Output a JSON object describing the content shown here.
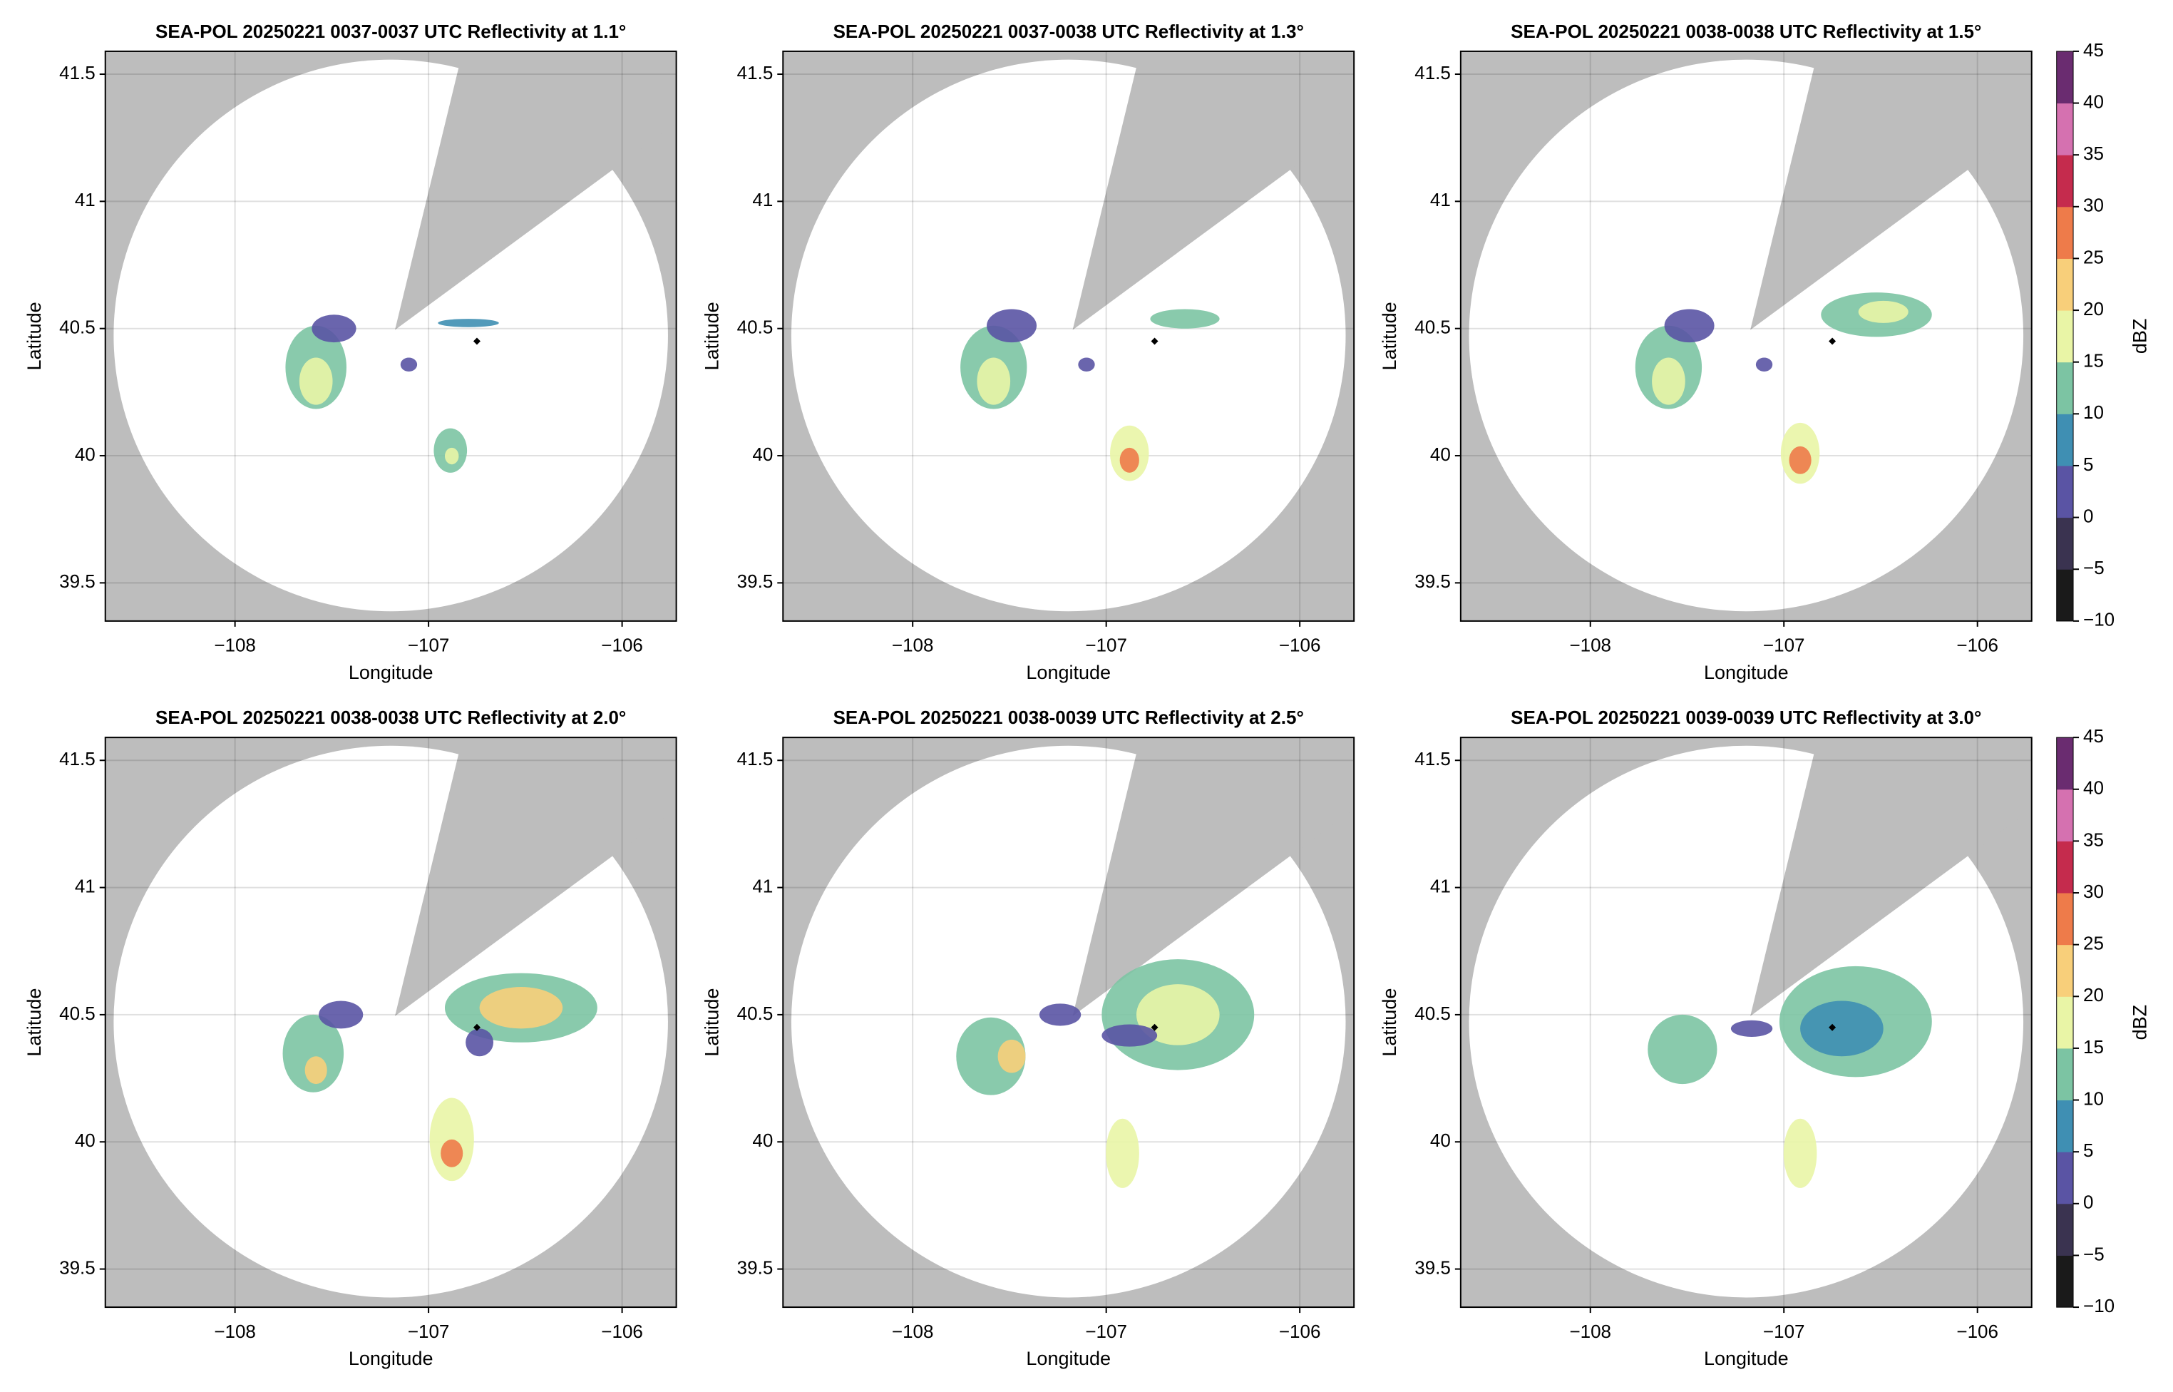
{
  "chart_data": [
    {
      "type": "map",
      "title": "SEA-POL 20250221 0037-0037 UTC Reflectivity at 1.1°",
      "xlabel": "Longitude",
      "ylabel": "Latitude",
      "xlim": [
        -108.67,
        -105.72
      ],
      "ylim": [
        39.35,
        41.59
      ],
      "xticks": [
        {
          "value": -108,
          "label": "−108"
        },
        {
          "value": -107,
          "label": "−107"
        },
        {
          "value": -106,
          "label": "−106"
        }
      ],
      "yticks": [
        39.5,
        40.0,
        40.5,
        41.0,
        41.5
      ],
      "grid": true,
      "site": {
        "x": -106.75,
        "y": 40.45
      }
    },
    {
      "type": "map",
      "title": "SEA-POL 20250221 0037-0038 UTC Reflectivity at 1.3°",
      "xlabel": "Longitude",
      "ylabel": "Latitude",
      "xlim": [
        -108.67,
        -105.72
      ],
      "ylim": [
        39.35,
        41.59
      ],
      "xticks": [
        {
          "value": -108,
          "label": "−108"
        },
        {
          "value": -107,
          "label": "−107"
        },
        {
          "value": -106,
          "label": "−106"
        }
      ],
      "yticks": [
        39.5,
        40.0,
        40.5,
        41.0,
        41.5
      ],
      "grid": true,
      "site": {
        "x": -106.75,
        "y": 40.45
      }
    },
    {
      "type": "map",
      "title": "SEA-POL 20250221 0038-0038 UTC Reflectivity at 1.5°",
      "xlabel": "Longitude",
      "ylabel": "Latitude",
      "xlim": [
        -108.67,
        -105.72
      ],
      "ylim": [
        39.35,
        41.59
      ],
      "xticks": [
        {
          "value": -108,
          "label": "−108"
        },
        {
          "value": -107,
          "label": "−107"
        },
        {
          "value": -106,
          "label": "−106"
        }
      ],
      "yticks": [
        39.5,
        40.0,
        40.5,
        41.0,
        41.5
      ],
      "grid": true,
      "site": {
        "x": -106.75,
        "y": 40.45
      },
      "colorbar": {
        "label": "dBZ",
        "lim": [
          -10,
          45
        ],
        "ticks": [
          {
            "value": -10,
            "label": "−10"
          },
          {
            "value": -5,
            "label": "−5"
          },
          0,
          5,
          10,
          15,
          20,
          25,
          30,
          35,
          40,
          45
        ],
        "colors": [
          "#1a1a1a",
          "#3a3350",
          "#5a54a4",
          "#3f8fb3",
          "#7cc4a3",
          "#e9f5a6",
          "#f8cf7a",
          "#ee7b4a",
          "#c52b4d",
          "#d571b0",
          "#6a2c70"
        ]
      }
    },
    {
      "type": "map",
      "title": "SEA-POL 20250221 0038-0038 UTC Reflectivity at 2.0°",
      "xlabel": "Longitude",
      "ylabel": "Latitude",
      "xlim": [
        -108.67,
        -105.72
      ],
      "ylim": [
        39.35,
        41.59
      ],
      "xticks": [
        {
          "value": -108,
          "label": "−108"
        },
        {
          "value": -107,
          "label": "−107"
        },
        {
          "value": -106,
          "label": "−106"
        }
      ],
      "yticks": [
        39.5,
        40.0,
        40.5,
        41.0,
        41.5
      ],
      "grid": true,
      "site": {
        "x": -106.75,
        "y": 40.45
      }
    },
    {
      "type": "map",
      "title": "SEA-POL 20250221 0038-0039 UTC Reflectivity at 2.5°",
      "xlabel": "Longitude",
      "ylabel": "Latitude",
      "xlim": [
        -108.67,
        -105.72
      ],
      "ylim": [
        39.35,
        41.59
      ],
      "xticks": [
        {
          "value": -108,
          "label": "−108"
        },
        {
          "value": -107,
          "label": "−107"
        },
        {
          "value": -106,
          "label": "−106"
        }
      ],
      "yticks": [
        39.5,
        40.0,
        40.5,
        41.0,
        41.5
      ],
      "grid": true,
      "site": {
        "x": -106.75,
        "y": 40.45
      }
    },
    {
      "type": "map",
      "title": "SEA-POL 20250221 0039-0039 UTC Reflectivity at 3.0°",
      "xlabel": "Longitude",
      "ylabel": "Latitude",
      "xlim": [
        -108.67,
        -105.72
      ],
      "ylim": [
        39.35,
        41.59
      ],
      "xticks": [
        {
          "value": -108,
          "label": "−108"
        },
        {
          "value": -107,
          "label": "−107"
        },
        {
          "value": -106,
          "label": "−106"
        }
      ],
      "yticks": [
        39.5,
        40.0,
        40.5,
        41.0,
        41.5
      ],
      "grid": true,
      "site": {
        "x": -106.75,
        "y": 40.45
      },
      "colorbar": {
        "label": "dBZ",
        "lim": [
          -10,
          45
        ],
        "ticks": [
          {
            "value": -10,
            "label": "−10"
          },
          {
            "value": -5,
            "label": "−5"
          },
          0,
          5,
          10,
          15,
          20,
          25,
          30,
          35,
          40,
          45
        ],
        "colors": [
          "#1a1a1a",
          "#3a3350",
          "#5a54a4",
          "#3f8fb3",
          "#7cc4a3",
          "#e9f5a6",
          "#f8cf7a",
          "#ee7b4a",
          "#c52b4d",
          "#d571b0",
          "#6a2c70"
        ]
      }
    }
  ]
}
